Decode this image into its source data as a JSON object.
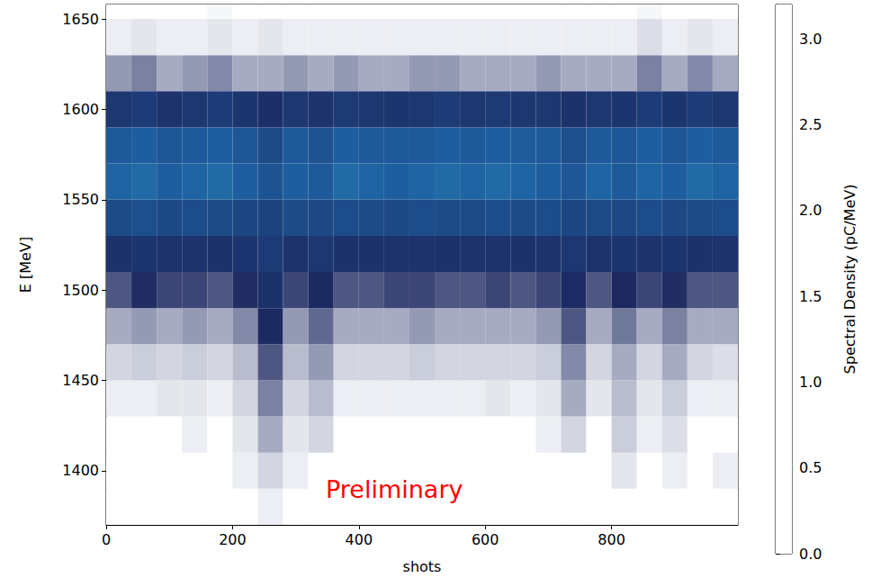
{
  "chart_data": {
    "type": "heatmap",
    "xlabel": "shots",
    "ylabel": "E [MeV]",
    "annotation": "Preliminary",
    "annotation_color": "#ff0000",
    "xlim": [
      0,
      1000
    ],
    "xticks": [
      0,
      200,
      400,
      600,
      800
    ],
    "ylim": [
      1370,
      1658
    ],
    "yticks": [
      1400,
      1450,
      1500,
      1550,
      1600,
      1650
    ],
    "x_bins": [
      0,
      40,
      80,
      120,
      160,
      200,
      240,
      280,
      320,
      360,
      400,
      440,
      480,
      520,
      560,
      600,
      640,
      680,
      720,
      760,
      800,
      840,
      880,
      920,
      960,
      1000
    ],
    "y_bins": [
      1370,
      1390,
      1410,
      1430,
      1450,
      1470,
      1490,
      1510,
      1530,
      1550,
      1570,
      1590,
      1610,
      1630,
      1650,
      1670
    ],
    "cells": [
      [
        0,
        0,
        0,
        0,
        0,
        0,
        0.02,
        0,
        0,
        0,
        0,
        0,
        0,
        0,
        0,
        0,
        0,
        0,
        0,
        0,
        0,
        0,
        0,
        0,
        0
      ],
      [
        0,
        0,
        0,
        0,
        0,
        0.02,
        0.05,
        0.02,
        0,
        0,
        0,
        0,
        0,
        0,
        0,
        0,
        0,
        0,
        0,
        0,
        0.03,
        0,
        0.02,
        0,
        0.02
      ],
      [
        0,
        0,
        0,
        0.02,
        0,
        0.03,
        0.1,
        0.03,
        0.05,
        0,
        0,
        0,
        0,
        0,
        0,
        0,
        0,
        0.02,
        0.05,
        0,
        0.06,
        0.02,
        0.04,
        0,
        0
      ],
      [
        0.02,
        0.02,
        0.03,
        0.03,
        0.02,
        0.05,
        0.15,
        0.05,
        0.08,
        0.02,
        0.02,
        0.02,
        0.02,
        0.02,
        0.02,
        0.03,
        0.02,
        0.03,
        0.1,
        0.03,
        0.08,
        0.03,
        0.06,
        0.02,
        0.02
      ],
      [
        0.05,
        0.06,
        0.05,
        0.06,
        0.05,
        0.08,
        0.2,
        0.08,
        0.12,
        0.05,
        0.05,
        0.05,
        0.06,
        0.05,
        0.05,
        0.05,
        0.05,
        0.06,
        0.14,
        0.05,
        0.1,
        0.05,
        0.1,
        0.05,
        0.04
      ],
      [
        0.1,
        0.12,
        0.1,
        0.12,
        0.1,
        0.14,
        0.28,
        0.12,
        0.18,
        0.1,
        0.1,
        0.1,
        0.12,
        0.1,
        0.1,
        0.1,
        0.1,
        0.12,
        0.2,
        0.1,
        0.16,
        0.1,
        0.15,
        0.1,
        0.1
      ],
      [
        0.2,
        0.25,
        0.22,
        0.22,
        0.2,
        0.25,
        0.38,
        0.22,
        0.28,
        0.2,
        0.2,
        0.22,
        0.22,
        0.2,
        0.2,
        0.22,
        0.2,
        0.22,
        0.3,
        0.2,
        0.26,
        0.22,
        0.25,
        0.2,
        0.2
      ],
      [
        0.38,
        0.42,
        0.4,
        0.4,
        0.38,
        0.42,
        0.5,
        0.4,
        0.45,
        0.38,
        0.38,
        0.4,
        0.4,
        0.38,
        0.4,
        0.4,
        0.38,
        0.4,
        0.45,
        0.4,
        0.42,
        0.4,
        0.42,
        0.38,
        0.4
      ],
      [
        0.7,
        0.75,
        0.68,
        0.72,
        0.7,
        0.65,
        0.6,
        0.7,
        0.66,
        0.72,
        0.7,
        0.68,
        0.72,
        0.7,
        0.7,
        0.74,
        0.7,
        0.72,
        0.65,
        0.7,
        0.66,
        0.72,
        0.66,
        0.7,
        0.72
      ],
      [
        1.0,
        1.05,
        0.95,
        1.0,
        1.05,
        0.95,
        0.8,
        0.95,
        0.9,
        1.05,
        1.0,
        0.95,
        1.0,
        1.05,
        1.0,
        1.05,
        1.0,
        0.95,
        0.85,
        1.0,
        0.9,
        1.0,
        0.95,
        1.05,
        1.0
      ],
      [
        0.9,
        0.95,
        0.85,
        0.9,
        0.95,
        0.85,
        0.7,
        0.9,
        0.8,
        0.95,
        0.9,
        0.88,
        0.9,
        0.95,
        0.9,
        0.95,
        0.92,
        0.9,
        0.75,
        0.9,
        0.85,
        0.95,
        0.85,
        0.95,
        0.9
      ],
      [
        0.45,
        0.5,
        0.4,
        0.45,
        0.5,
        0.42,
        0.35,
        0.45,
        0.4,
        0.48,
        0.45,
        0.42,
        0.45,
        0.5,
        0.45,
        0.48,
        0.45,
        0.45,
        0.38,
        0.45,
        0.42,
        0.5,
        0.42,
        0.5,
        0.45
      ],
      [
        0.12,
        0.15,
        0.1,
        0.12,
        0.14,
        0.1,
        0.1,
        0.12,
        0.1,
        0.12,
        0.1,
        0.1,
        0.12,
        0.12,
        0.1,
        0.1,
        0.1,
        0.12,
        0.1,
        0.1,
        0.1,
        0.15,
        0.1,
        0.14,
        0.1
      ],
      [
        0.02,
        0.03,
        0.02,
        0.02,
        0.03,
        0.02,
        0.03,
        0.02,
        0.02,
        0.02,
        0.02,
        0.02,
        0.02,
        0.02,
        0.02,
        0.02,
        0.02,
        0.02,
        0.02,
        0.02,
        0.02,
        0.04,
        0.02,
        0.03,
        0.02
      ],
      [
        0,
        0,
        0,
        0,
        0.01,
        0,
        0,
        0,
        0,
        0,
        0,
        0,
        0,
        0,
        0,
        0,
        0,
        0,
        0,
        0,
        0,
        0.01,
        0,
        0,
        0
      ]
    ],
    "colorbar": {
      "label": "Spectral Density (pC/MeV)",
      "range": [
        0,
        3.2
      ],
      "ticks": [
        {
          "value": 0,
          "label": "0.0"
        },
        0.5,
        {
          "value": 1,
          "label": "1.0"
        },
        1.5,
        {
          "value": 2,
          "label": "2.0"
        },
        2.5,
        {
          "value": 3,
          "label": "3.0"
        }
      ]
    }
  }
}
